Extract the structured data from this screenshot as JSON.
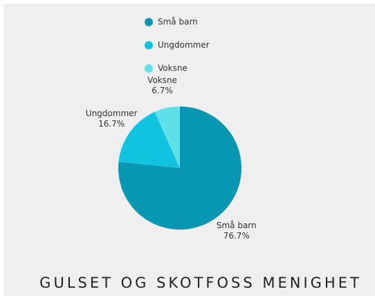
{
  "chart_data": {
    "type": "pie",
    "title": "GULSET OG SKOTFOSS MENIGHET",
    "categories": [
      "Små barn",
      "Ungdommer",
      "Voksne"
    ],
    "values": [
      76.7,
      16.7,
      6.7
    ],
    "value_labels": [
      "76.7%",
      "16.7%",
      "6.7%"
    ],
    "colors": [
      "#0797b0",
      "#12c3e0",
      "#5ee1e8"
    ],
    "legend": "top"
  }
}
